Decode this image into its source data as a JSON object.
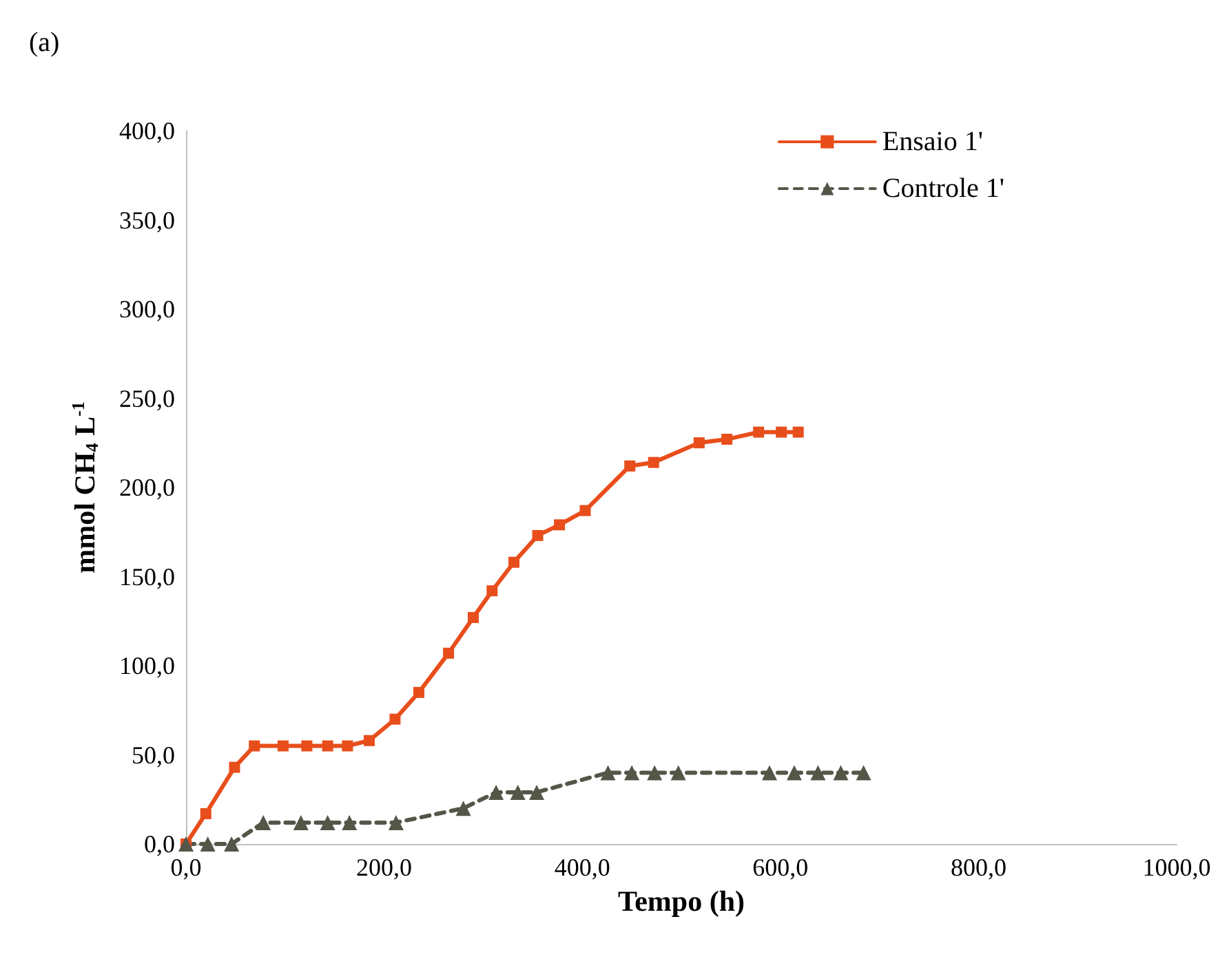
{
  "chart_data": {
    "type": "line",
    "title": "(a)",
    "xlabel": "Tempo (h)",
    "ylabel": "mmol CH$_{4}$ L$^{-1}$",
    "xlim": [
      0,
      1000
    ],
    "xticks": [
      {
        "value": 0,
        "label": "0,0"
      },
      {
        "value": 200,
        "label": "200,0"
      },
      {
        "value": 400,
        "label": "400,0"
      },
      {
        "value": 600,
        "label": "600,0"
      },
      {
        "value": 800,
        "label": "800,0"
      },
      {
        "value": 1000,
        "label": "1000,0"
      }
    ],
    "ylim": [
      0,
      400
    ],
    "yticks": [
      {
        "value": 0,
        "label": "0,0"
      },
      {
        "value": 50,
        "label": "50,0"
      },
      {
        "value": 100,
        "label": "100,0"
      },
      {
        "value": 150,
        "label": "150,0"
      },
      {
        "value": 200,
        "label": "200,0"
      },
      {
        "value": 250,
        "label": "250,0"
      },
      {
        "value": 300,
        "label": "300,0"
      },
      {
        "value": 350,
        "label": "350,0"
      },
      {
        "value": 400,
        "label": "400,0"
      }
    ],
    "grid": false,
    "legend": "top right",
    "series": [
      {
        "name": "Ensaio 1'",
        "color": "#e84e1b",
        "marker": "square",
        "line_style": "solid",
        "x": [
          0,
          20,
          49,
          69,
          98,
          122,
          143,
          163,
          185,
          211,
          235,
          265,
          290,
          309,
          331,
          355,
          377,
          403,
          448,
          472,
          518,
          546,
          578,
          601,
          618
        ],
        "values": [
          0,
          17,
          43,
          55,
          55,
          55,
          55,
          55,
          58,
          70,
          85,
          107,
          127,
          142,
          158,
          173,
          179,
          187,
          212,
          214,
          225,
          227,
          231,
          231,
          231
        ]
      },
      {
        "name": "Controle 1'",
        "color": "#555548",
        "marker": "triangle",
        "line_style": "dashed",
        "x": [
          0,
          22,
          46,
          78,
          116,
          143,
          165,
          212,
          280,
          313,
          335,
          354,
          426,
          450,
          473,
          497,
          589,
          614,
          638,
          661,
          684
        ],
        "values": [
          0,
          0,
          0,
          12,
          12,
          12,
          12,
          12,
          20,
          29,
          29,
          29,
          40,
          40,
          40,
          40,
          40,
          40,
          40,
          40,
          40
        ]
      }
    ]
  }
}
